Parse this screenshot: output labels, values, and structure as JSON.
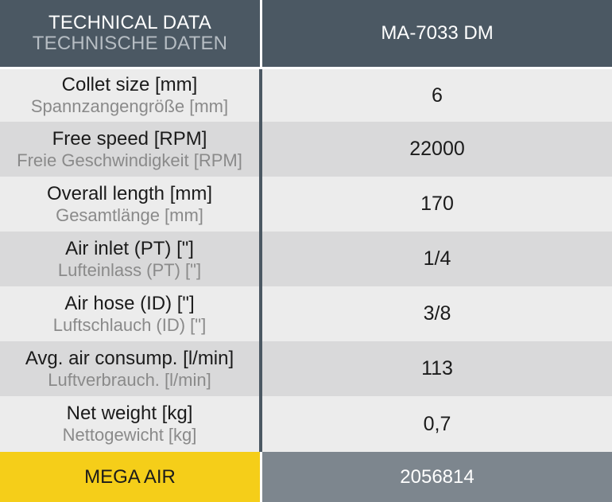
{
  "header": {
    "title_en": "TECHNICAL DATA",
    "title_de": "TECHNISCHE DATEN",
    "model": "MA-7033 DM"
  },
  "rows": [
    {
      "label_en": "Collet size [mm]",
      "label_de": "Spannzangengröße [mm]",
      "value": "6"
    },
    {
      "label_en": "Free speed [RPM]",
      "label_de": "Freie Geschwindigkeit [RPM]",
      "value": "22000"
    },
    {
      "label_en": "Overall length [mm]",
      "label_de": "Gesamtlänge [mm]",
      "value": "170"
    },
    {
      "label_en": "Air inlet (PT) [\"]",
      "label_de": "Lufteinlass (PT) [\"]",
      "value": "1/4"
    },
    {
      "label_en": "Air hose (ID) [\"]",
      "label_de": "Luftschlauch (ID) [\"]",
      "value": "3/8"
    },
    {
      "label_en": "Avg. air consump. [l/min]",
      "label_de": "Luftverbrauch. [l/min]",
      "value": "113"
    },
    {
      "label_en": "Net weight [kg]",
      "label_de": "Nettogewicht [kg]",
      "value": "0,7"
    }
  ],
  "footer": {
    "brand": "MEGA AIR",
    "code": "2056814"
  },
  "colors": {
    "header_bg": "#4b5863",
    "row_light": "#ececec",
    "row_dark": "#d9d9da",
    "brand_yellow": "#f5ce19",
    "code_bg": "#7d868e"
  }
}
